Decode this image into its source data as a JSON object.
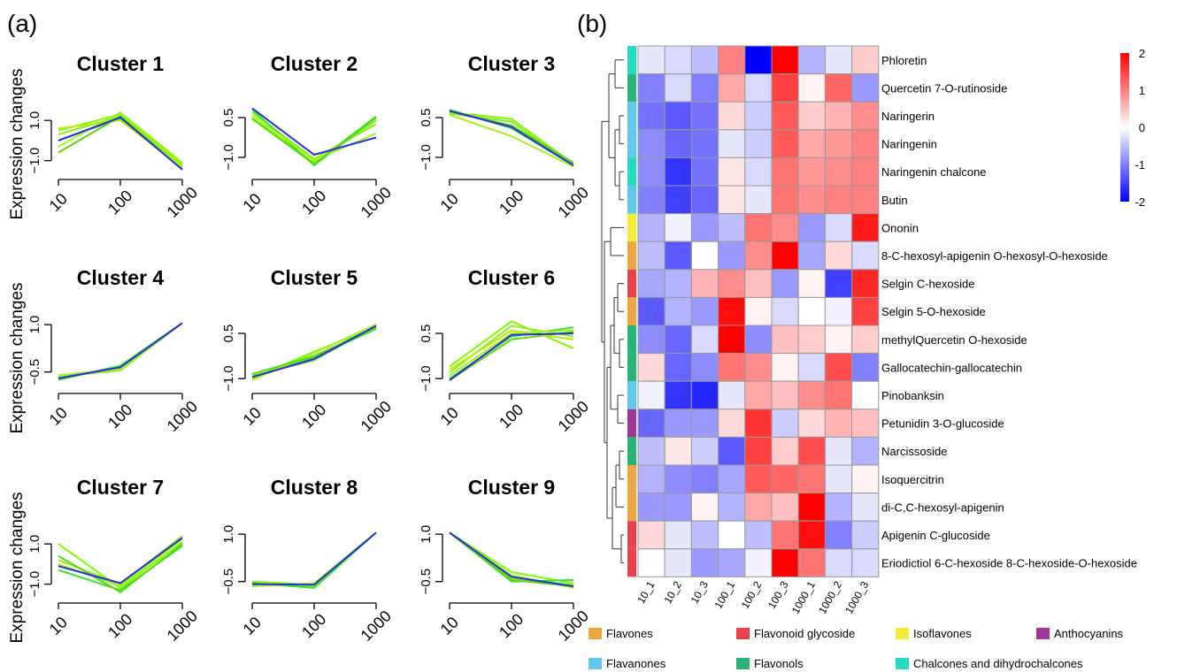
{
  "panel_labels": {
    "a": "(a)",
    "b": "(b)"
  },
  "chart_data": [
    {
      "type": "line",
      "panel": "(a)",
      "ylabel": "Expression changes",
      "x_categories": [
        "10",
        "100",
        "1000"
      ],
      "clusters": [
        {
          "title": "Cluster 1",
          "ylim": [
            -1.5,
            1.8
          ],
          "yticks": [
            -1.0,
            1.0
          ],
          "ytick_labels": [
            "−1.0",
            "1.0"
          ],
          "series": [
            [
              0.5,
              1.3,
              -1.2
            ],
            [
              0.3,
              1.2,
              -1.3
            ],
            [
              0.0,
              1.1,
              -1.4
            ],
            [
              -0.3,
              1.4,
              -1.1
            ],
            [
              -0.6,
              1.2,
              -1.45
            ],
            [
              0.6,
              1.0,
              -1.35
            ]
          ],
          "centroid": [
            0.0,
            1.15,
            -1.45
          ]
        },
        {
          "title": "Cluster 2",
          "ylim": [
            -1.5,
            1.0
          ],
          "yticks": [
            -1.0,
            0.5
          ],
          "ytick_labels": [
            "−1.0",
            "0.5"
          ],
          "series": [
            [
              0.5,
              -1.2,
              0.4
            ],
            [
              0.7,
              -1.05,
              0.25
            ],
            [
              0.8,
              -1.3,
              0.5
            ],
            [
              0.6,
              -1.1,
              -0.1
            ],
            [
              0.45,
              -1.25,
              0.55
            ]
          ],
          "centroid": [
            0.85,
            -0.9,
            -0.25
          ]
        },
        {
          "title": "Cluster 3",
          "ylim": [
            -1.5,
            1.0
          ],
          "yticks": [
            -1.0,
            0.5
          ],
          "ytick_labels": [
            "−1.0",
            "0.5"
          ],
          "series": [
            [
              0.7,
              0.45,
              -1.25
            ],
            [
              0.65,
              0.35,
              -1.3
            ],
            [
              0.8,
              0.1,
              -1.3
            ],
            [
              0.6,
              -0.2,
              -1.35
            ],
            [
              0.75,
              0.2,
              -1.2
            ]
          ],
          "centroid": [
            0.75,
            0.15,
            -1.3
          ]
        },
        {
          "title": "Cluster 4",
          "ylim": [
            -0.9,
            1.2
          ],
          "yticks": [
            -0.5,
            1.0
          ],
          "ytick_labels": [
            "−0.5",
            "1.0"
          ],
          "series": [
            [
              -0.7,
              -0.35,
              1.05
            ],
            [
              -0.65,
              -0.45,
              1.05
            ],
            [
              -0.75,
              -0.3,
              1.05
            ],
            [
              -0.6,
              -0.4,
              1.05
            ]
          ],
          "centroid": [
            -0.7,
            -0.35,
            1.05
          ]
        },
        {
          "title": "Cluster 5",
          "ylim": [
            -1.2,
            1.0
          ],
          "yticks": [
            -1.0,
            0.5
          ],
          "ytick_labels": [
            "−1.0",
            "0.5"
          ],
          "series": [
            [
              -1.0,
              -0.1,
              0.7
            ],
            [
              -0.9,
              -0.4,
              0.75
            ],
            [
              -0.95,
              -0.3,
              0.65
            ],
            [
              -1.05,
              -0.15,
              0.8
            ],
            [
              -0.85,
              -0.25,
              0.7
            ]
          ],
          "centroid": [
            -0.95,
            -0.35,
            0.75
          ]
        },
        {
          "title": "Cluster 6",
          "ylim": [
            -1.2,
            1.0
          ],
          "yticks": [
            -1.0,
            0.5
          ],
          "ytick_labels": [
            "−1.0",
            "0.5"
          ],
          "series": [
            [
              -0.6,
              0.9,
              0.0
            ],
            [
              -0.8,
              0.75,
              0.4
            ],
            [
              -1.0,
              0.4,
              0.7
            ],
            [
              -0.9,
              0.5,
              0.6
            ],
            [
              -1.05,
              0.3,
              0.55
            ],
            [
              -0.7,
              0.6,
              0.3
            ]
          ],
          "centroid": [
            -1.05,
            0.45,
            0.5
          ]
        },
        {
          "title": "Cluster 7",
          "ylim": [
            -1.5,
            1.8
          ],
          "yticks": [
            -1.0,
            1.0
          ],
          "ytick_labels": [
            "−1.0",
            "1.0"
          ],
          "series": [
            [
              1.0,
              -1.2,
              1.1
            ],
            [
              0.2,
              -1.0,
              1.4
            ],
            [
              -0.3,
              -1.3,
              0.9
            ],
            [
              0.0,
              -1.1,
              1.25
            ],
            [
              0.4,
              -1.4,
              1.0
            ]
          ],
          "centroid": [
            -0.1,
            -0.95,
            1.3
          ]
        },
        {
          "title": "Cluster 8",
          "ylim": [
            -0.9,
            1.2
          ],
          "yticks": [
            -0.5,
            1.0
          ],
          "ytick_labels": [
            "−0.5",
            "1.0"
          ],
          "series": [
            [
              -0.5,
              -0.6,
              1.05
            ],
            [
              -0.6,
              -0.65,
              1.05
            ],
            [
              -0.55,
              -0.7,
              1.05
            ],
            [
              -0.65,
              -0.55,
              1.05
            ]
          ],
          "centroid": [
            -0.58,
            -0.6,
            1.05
          ]
        },
        {
          "title": "Cluster 9",
          "ylim": [
            -0.9,
            1.2
          ],
          "yticks": [
            -0.5,
            1.0
          ],
          "ytick_labels": [
            "−0.5",
            "1.0"
          ],
          "series": [
            [
              1.05,
              -0.2,
              -0.55
            ],
            [
              1.05,
              -0.4,
              -0.6
            ],
            [
              1.05,
              -0.5,
              -0.45
            ],
            [
              1.05,
              -0.3,
              -0.7
            ],
            [
              1.05,
              -0.45,
              -0.65
            ]
          ],
          "centroid": [
            1.05,
            -0.35,
            -0.65
          ]
        }
      ]
    },
    {
      "type": "heatmap",
      "panel": "(b)",
      "columns": [
        "10_1",
        "10_2",
        "10_3",
        "100_1",
        "100_2",
        "100_3",
        "1000_1",
        "1000_2",
        "1000_3"
      ],
      "rows": [
        {
          "name": "Phloretin",
          "class": "Chalcones and dihydrochalcones",
          "values": [
            -0.2,
            -0.3,
            -0.5,
            1.0,
            -2.0,
            2.0,
            -0.6,
            -0.2,
            0.4
          ]
        },
        {
          "name": "Quercetin 7-O-rutinoside",
          "class": "Flavonols",
          "values": [
            -1.0,
            -0.3,
            -1.0,
            0.7,
            -0.3,
            1.5,
            0.1,
            1.2,
            -0.8
          ]
        },
        {
          "name": "Naringerin",
          "class": "Flavanones",
          "values": [
            -1.1,
            -1.3,
            -1.1,
            0.3,
            -0.4,
            1.3,
            0.4,
            0.6,
            0.9
          ]
        },
        {
          "name": "Naringenin",
          "class": "Flavanones",
          "values": [
            -0.9,
            -1.2,
            -1.1,
            -0.2,
            -0.4,
            1.3,
            0.7,
            0.8,
            1.0
          ]
        },
        {
          "name": "Naringenin chalcone",
          "class": "Chalcones and dihydrochalcones",
          "values": [
            -0.9,
            -1.6,
            -1.1,
            0.2,
            -0.3,
            1.1,
            0.8,
            0.9,
            1.0
          ]
        },
        {
          "name": "Butin",
          "class": "Flavanones",
          "values": [
            -1.0,
            -1.5,
            -1.2,
            0.2,
            -0.2,
            1.1,
            0.9,
            1.0,
            1.0
          ]
        },
        {
          "name": "Ononin",
          "class": "Isoflavones",
          "values": [
            -0.6,
            -0.1,
            -0.8,
            -0.5,
            1.1,
            0.9,
            -0.8,
            -0.3,
            1.8
          ]
        },
        {
          "name": "8-C-hexosyl-apigenin O-hexosyl-O-hexoside",
          "class": "Flavones",
          "values": [
            -0.5,
            -1.3,
            0.0,
            -0.8,
            0.9,
            2.0,
            -0.7,
            0.3,
            -0.3
          ]
        },
        {
          "name": "Selgin C-hexoside",
          "class": "Flavonoid glycoside",
          "values": [
            -0.7,
            -0.6,
            0.6,
            0.9,
            0.5,
            -0.8,
            0.1,
            -1.5,
            1.7
          ]
        },
        {
          "name": "Selgin 5-O-hexoside",
          "class": "Flavones",
          "values": [
            -1.3,
            -0.6,
            -0.8,
            1.9,
            0.1,
            -0.3,
            0.0,
            -0.1,
            1.5
          ]
        },
        {
          "name": "methylQuercetin O-hexoside",
          "class": "Flavonols",
          "values": [
            -0.9,
            -1.2,
            -0.3,
            2.0,
            -0.9,
            0.5,
            0.4,
            0.1,
            0.4
          ]
        },
        {
          "name": "Gallocatechin-gallocatechin",
          "class": "Flavonols",
          "values": [
            0.3,
            -1.2,
            -0.9,
            1.1,
            0.9,
            0.1,
            -0.3,
            1.4,
            -1.0
          ]
        },
        {
          "name": "Pinobanksin",
          "class": "Flavanones",
          "values": [
            -0.1,
            -1.6,
            -1.7,
            -0.2,
            0.7,
            0.5,
            0.9,
            1.1,
            0.0
          ]
        },
        {
          "name": "Petunidin 3-O-glucoside",
          "class": "Anthocyanins",
          "values": [
            -1.2,
            -0.8,
            -0.8,
            0.3,
            1.6,
            -0.4,
            0.3,
            0.6,
            0.5
          ]
        },
        {
          "name": "Narcissoside",
          "class": "Flavonols",
          "values": [
            -0.5,
            0.2,
            -0.4,
            -1.3,
            1.5,
            0.4,
            1.4,
            -0.2,
            -0.6
          ]
        },
        {
          "name": "Isoquercitrin",
          "class": "Flavones",
          "values": [
            -0.6,
            -0.9,
            -1.0,
            -0.7,
            1.3,
            1.2,
            1.1,
            -0.2,
            0.1
          ]
        },
        {
          "name": "di-C,C-hexosyl-apigenin",
          "class": "Flavones",
          "values": [
            -0.8,
            -0.8,
            0.1,
            -0.6,
            0.7,
            0.5,
            2.0,
            -0.6,
            -0.2
          ]
        },
        {
          "name": "Apigenin C-glucoside",
          "class": "Flavonoid glycoside",
          "values": [
            0.3,
            -0.2,
            -0.5,
            0.0,
            -0.5,
            1.1,
            1.9,
            -1.0,
            -0.4
          ]
        },
        {
          "name": "Eriodictiol 6-C-hexoside 8-C-hexoside-O-hexoside",
          "class": "Flavonoid glycoside",
          "values": [
            0.0,
            -0.2,
            -0.8,
            -0.7,
            -0.1,
            2.0,
            1.1,
            -0.3,
            -0.3
          ]
        }
      ],
      "colorbar": {
        "min": -2,
        "max": 2,
        "ticks": [
          -2,
          -1,
          0,
          1,
          2
        ],
        "tick_labels": [
          "-2",
          "-1",
          "0",
          "1",
          "2"
        ],
        "low_color": "#0000ff",
        "mid_color": "#ffffff",
        "high_color": "#ff0000"
      },
      "legend": [
        {
          "label": "Flavones",
          "color": "#f0a640"
        },
        {
          "label": "Flavonoid glycoside",
          "color": "#e8434c"
        },
        {
          "label": "Isoflavones",
          "color": "#f5ec3a"
        },
        {
          "label": "Anthocyanins",
          "color": "#a0359a"
        },
        {
          "label": "Flavanones",
          "color": "#5ec8ef"
        },
        {
          "label": "Flavonols",
          "color": "#2ab377"
        },
        {
          "label": "Chalcones and dihydrochalcones",
          "color": "#25dbc0"
        }
      ]
    }
  ]
}
